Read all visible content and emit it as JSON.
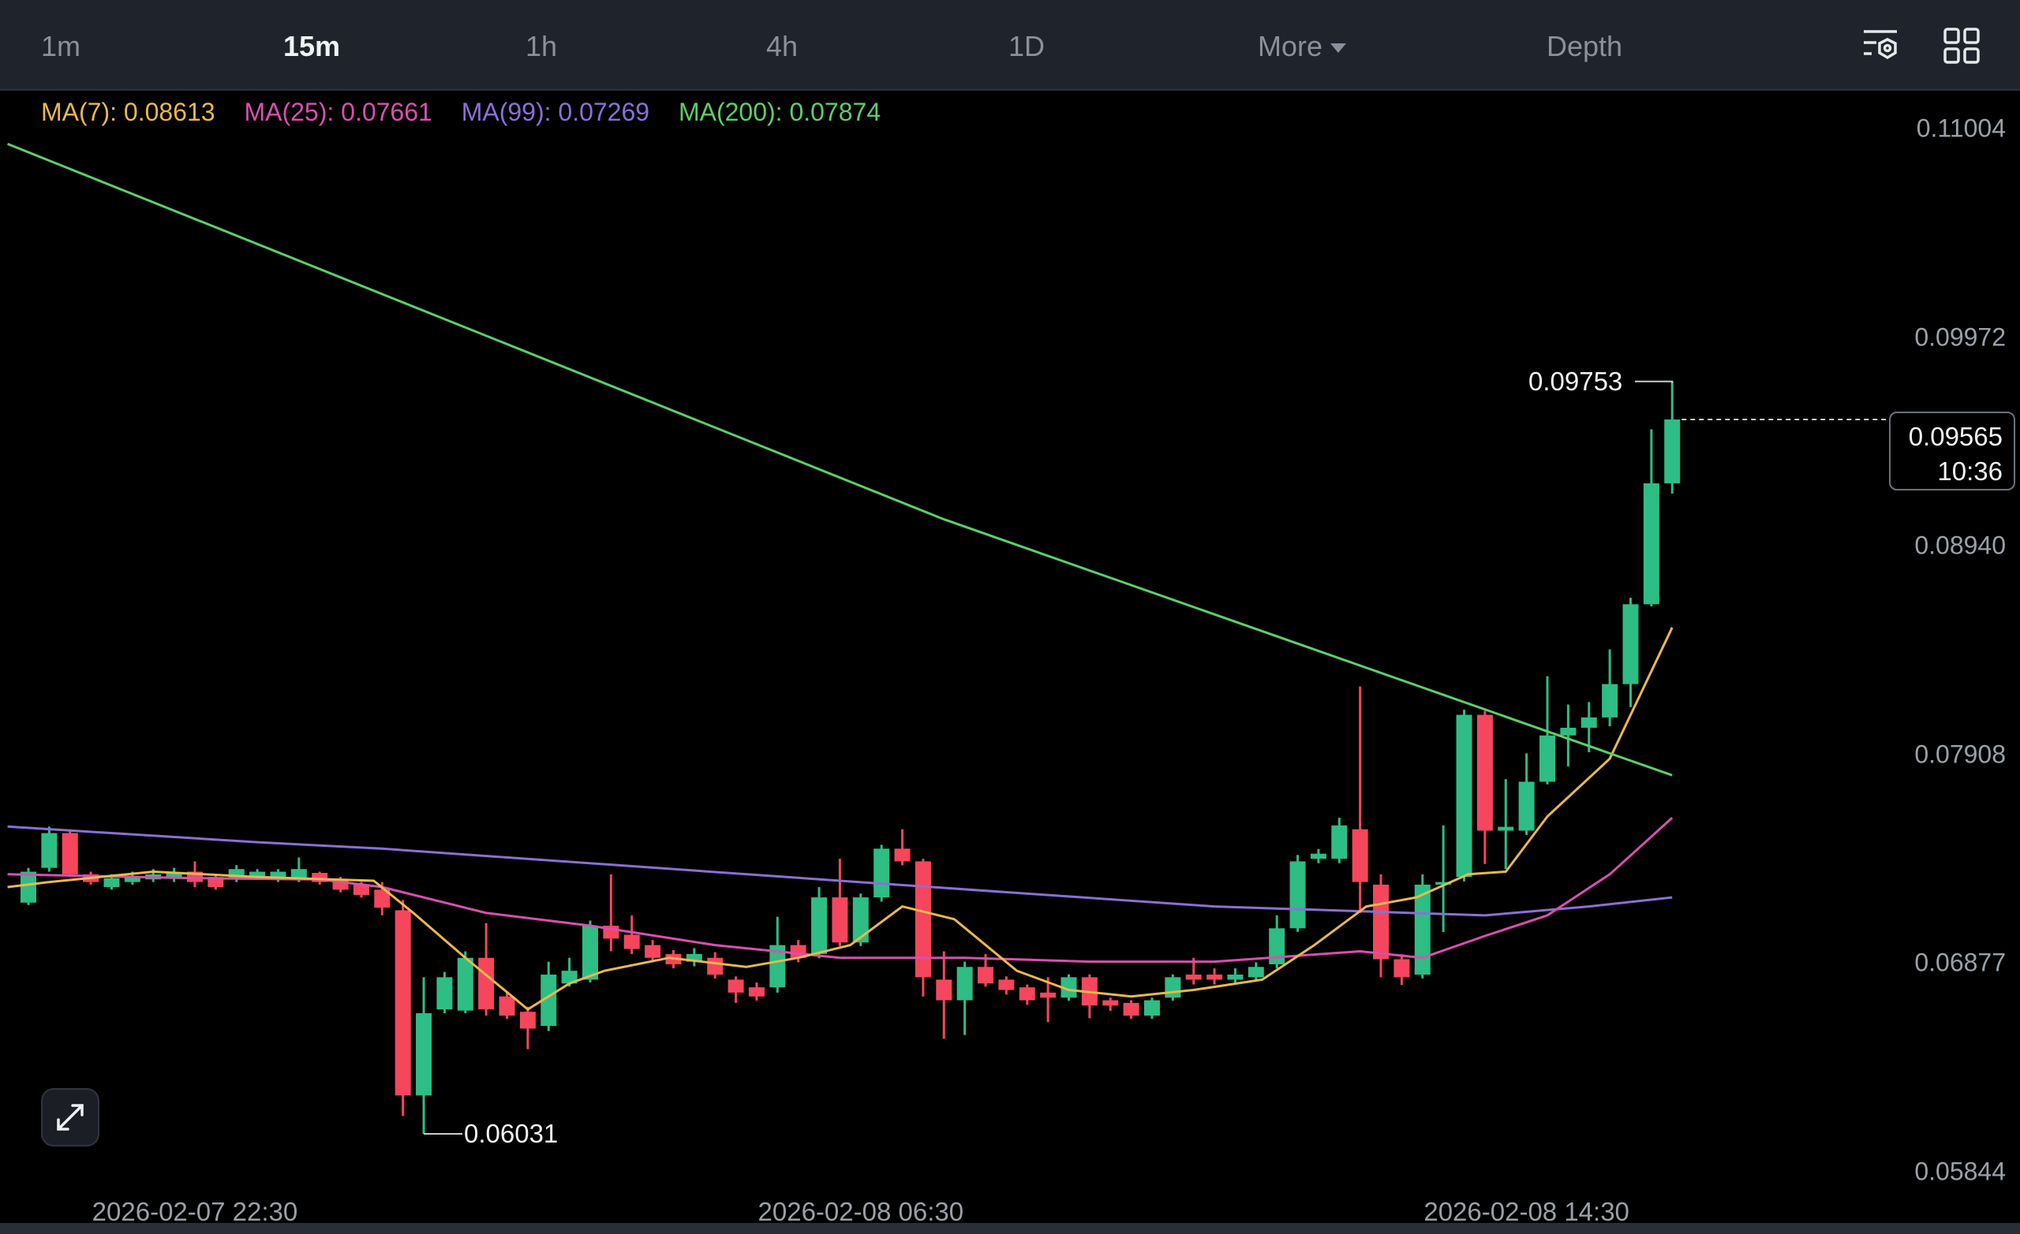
{
  "toolbar": {
    "tabs": [
      {
        "label": "1m"
      },
      {
        "label": "15m",
        "active": true
      },
      {
        "label": "1h"
      },
      {
        "label": "4h"
      },
      {
        "label": "1D"
      },
      {
        "label": "More"
      },
      {
        "label": "Depth"
      }
    ],
    "icons": [
      "chart-settings-icon",
      "grid-layout-icon"
    ]
  },
  "legend": {
    "ma7": "MA(7): 0.08613",
    "ma25": "MA(25): 0.07661",
    "ma99": "MA(99): 0.07269",
    "ma200": "MA(200): 0.07874"
  },
  "colors": {
    "up": "#2ebd85",
    "down": "#f6465d",
    "ma7": "#e9b949",
    "ma25": "#d94fb0",
    "ma99": "#8b6fd6",
    "ma200": "#5ccf6a"
  },
  "current_price": {
    "price": "0.09565",
    "countdown": "10:36"
  },
  "high_marker": "0.09753",
  "low_marker": "0.06031",
  "expand_icon": "expand-arrows-icon",
  "chart_data": {
    "type": "candlestick",
    "interval": "15m",
    "y_ticks": [
      "0.11004",
      "0.09972",
      "0.08940",
      "0.07908",
      "0.06877",
      "0.05844"
    ],
    "x_ticks": [
      {
        "label": "2026-02-07 22:30",
        "candle": 8
      },
      {
        "label": "2026-02-08 06:30",
        "candle": 40
      },
      {
        "label": "2026-02-08 14:30",
        "candle": 72
      }
    ],
    "ohlc_fields": [
      "open",
      "close",
      "high",
      "low"
    ],
    "candles": [
      [
        0.07175,
        0.07328,
        0.07347,
        0.07163
      ],
      [
        0.07347,
        0.07519,
        0.07551,
        0.07328
      ],
      [
        0.07519,
        0.07315,
        0.07538,
        0.07302
      ],
      [
        0.07315,
        0.07277,
        0.07328,
        0.07264
      ],
      [
        0.07252,
        0.07296,
        0.07315,
        0.07239
      ],
      [
        0.07277,
        0.07302,
        0.07328,
        0.07264
      ],
      [
        0.0729,
        0.07315,
        0.07341,
        0.07277
      ],
      [
        0.07296,
        0.07322,
        0.07347,
        0.07277
      ],
      [
        0.07328,
        0.07277,
        0.07379,
        0.07252
      ],
      [
        0.07302,
        0.07252,
        0.07315,
        0.07239
      ],
      [
        0.0729,
        0.07341,
        0.0736,
        0.07277
      ],
      [
        0.07302,
        0.07328,
        0.07341,
        0.0729
      ],
      [
        0.0729,
        0.07328,
        0.07341,
        0.07277
      ],
      [
        0.0729,
        0.07341,
        0.07398,
        0.07277
      ],
      [
        0.07322,
        0.07277,
        0.07328,
        0.07264
      ],
      [
        0.0729,
        0.07239,
        0.07302,
        0.07226
      ],
      [
        0.07264,
        0.07213,
        0.07277,
        0.072
      ],
      [
        0.07239,
        0.0715,
        0.07277,
        0.07112
      ],
      [
        0.07137,
        0.06221,
        0.07188,
        0.0612
      ],
      [
        0.06221,
        0.06628,
        0.06806,
        0.06031
      ],
      [
        0.06647,
        0.06806,
        0.06832,
        0.06628
      ],
      [
        0.06641,
        0.06902,
        0.06934,
        0.06628
      ],
      [
        0.06902,
        0.06647,
        0.07074,
        0.06616
      ],
      [
        0.06711,
        0.06616,
        0.0673,
        0.066
      ],
      [
        0.06635,
        0.06552,
        0.0666,
        0.0645
      ],
      [
        0.06565,
        0.06819,
        0.06883,
        0.0654
      ],
      [
        0.06775,
        0.06838,
        0.06902,
        0.0676
      ],
      [
        0.06794,
        0.07061,
        0.07086,
        0.0678
      ],
      [
        0.07061,
        0.06997,
        0.07315,
        0.06934
      ],
      [
        0.07016,
        0.06946,
        0.07112,
        0.06921
      ],
      [
        0.06965,
        0.06902,
        0.0699,
        0.0688
      ],
      [
        0.06921,
        0.0687,
        0.0694,
        0.0685
      ],
      [
        0.06883,
        0.06921,
        0.0695,
        0.0686
      ],
      [
        0.06902,
        0.06819,
        0.0693,
        0.068
      ],
      [
        0.06794,
        0.0673,
        0.0681,
        0.06679
      ],
      [
        0.06756,
        0.06711,
        0.0678,
        0.0669
      ],
      [
        0.06756,
        0.06965,
        0.07105,
        0.0673
      ],
      [
        0.06965,
        0.06902,
        0.0699,
        0.0688
      ],
      [
        0.06921,
        0.07201,
        0.07252,
        0.069
      ],
      [
        0.07201,
        0.06978,
        0.07392,
        0.0696
      ],
      [
        0.06978,
        0.07201,
        0.0722,
        0.0696
      ],
      [
        0.07201,
        0.07442,
        0.07461,
        0.0718
      ],
      [
        0.07442,
        0.07379,
        0.07538,
        0.0736
      ],
      [
        0.07379,
        0.06806,
        0.07392,
        0.06711
      ],
      [
        0.06794,
        0.06692,
        0.06934,
        0.06501
      ],
      [
        0.06692,
        0.06857,
        0.06883,
        0.0652
      ],
      [
        0.06857,
        0.06775,
        0.06921,
        0.0676
      ],
      [
        0.06794,
        0.06743,
        0.0681,
        0.0672
      ],
      [
        0.06756,
        0.06692,
        0.0677,
        0.0667
      ],
      [
        0.0673,
        0.06705,
        0.06806,
        0.06584
      ],
      [
        0.06705,
        0.06806,
        0.0682,
        0.0669
      ],
      [
        0.06806,
        0.06666,
        0.0682,
        0.06603
      ],
      [
        0.06692,
        0.06666,
        0.06705,
        0.0664
      ],
      [
        0.06679,
        0.06616,
        0.06692,
        0.066
      ],
      [
        0.06616,
        0.06692,
        0.06705,
        0.066
      ],
      [
        0.06705,
        0.06806,
        0.0682,
        0.0669
      ],
      [
        0.06819,
        0.06794,
        0.06902,
        0.0677
      ],
      [
        0.06819,
        0.06794,
        0.0685,
        0.0677
      ],
      [
        0.06794,
        0.06819,
        0.0685,
        0.0677
      ],
      [
        0.06806,
        0.06857,
        0.0688,
        0.0679
      ],
      [
        0.0687,
        0.07048,
        0.07112,
        0.0685
      ],
      [
        0.07048,
        0.07379,
        0.07411,
        0.0703
      ],
      [
        0.07392,
        0.07417,
        0.0744,
        0.0737
      ],
      [
        0.07392,
        0.07557,
        0.07595,
        0.0737
      ],
      [
        0.07538,
        0.07277,
        0.08244,
        0.07124
      ],
      [
        0.07264,
        0.06895,
        0.07315,
        0.06806
      ],
      [
        0.06895,
        0.06806,
        0.0692,
        0.06768
      ],
      [
        0.06819,
        0.07264,
        0.07315,
        0.068
      ],
      [
        0.07264,
        0.07277,
        0.07557,
        0.07029
      ],
      [
        0.07302,
        0.08104,
        0.08129,
        0.0728
      ],
      [
        0.08104,
        0.07531,
        0.08123,
        0.07366
      ],
      [
        0.07531,
        0.0755,
        0.07786,
        0.07341
      ],
      [
        0.07531,
        0.07773,
        0.07913,
        0.0751
      ],
      [
        0.07773,
        0.08002,
        0.08295,
        0.0776
      ],
      [
        0.08002,
        0.0804,
        0.08155,
        0.07849
      ],
      [
        0.0804,
        0.08091,
        0.08167,
        0.07919
      ],
      [
        0.08091,
        0.08256,
        0.08428,
        0.08047
      ],
      [
        0.08256,
        0.08651,
        0.08683,
        0.08142
      ],
      [
        0.08651,
        0.09249,
        0.09516,
        0.0864
      ],
      [
        0.09249,
        0.09565,
        0.09753,
        0.09198
      ]
    ],
    "moving_averages": {
      "ma7": [
        [
          -1,
          0.07252
        ],
        [
          1,
          0.07277
        ],
        [
          6,
          0.07328
        ],
        [
          11,
          0.07302
        ],
        [
          16.6,
          0.07283
        ],
        [
          18.5,
          0.07124
        ],
        [
          21,
          0.06902
        ],
        [
          24,
          0.06647
        ],
        [
          26,
          0.06775
        ],
        [
          27.7,
          0.06838
        ],
        [
          30.8,
          0.06902
        ],
        [
          34.5,
          0.06857
        ],
        [
          37,
          0.06902
        ],
        [
          39.5,
          0.06965
        ],
        [
          42,
          0.07156
        ],
        [
          44.5,
          0.07093
        ],
        [
          47.5,
          0.06838
        ],
        [
          50,
          0.06743
        ],
        [
          53,
          0.06711
        ],
        [
          56,
          0.06743
        ],
        [
          59.3,
          0.06794
        ],
        [
          61.8,
          0.06965
        ],
        [
          64.3,
          0.07156
        ],
        [
          66.7,
          0.07201
        ],
        [
          69.2,
          0.07315
        ],
        [
          71,
          0.07328
        ],
        [
          73,
          0.07601
        ],
        [
          76,
          0.07887
        ],
        [
          79,
          0.08536
        ]
      ],
      "ma25": [
        [
          -1,
          0.07315
        ],
        [
          8,
          0.07296
        ],
        [
          14,
          0.0729
        ],
        [
          17,
          0.07252
        ],
        [
          22,
          0.07124
        ],
        [
          27,
          0.07061
        ],
        [
          33,
          0.06965
        ],
        [
          39,
          0.06902
        ],
        [
          45,
          0.06902
        ],
        [
          51,
          0.06883
        ],
        [
          57,
          0.06883
        ],
        [
          64,
          0.06934
        ],
        [
          67,
          0.06902
        ],
        [
          70,
          0.0701
        ],
        [
          73,
          0.07112
        ],
        [
          76,
          0.07315
        ],
        [
          79,
          0.07595
        ]
      ],
      "ma99": [
        [
          -1,
          0.07551
        ],
        [
          11,
          0.07474
        ],
        [
          17,
          0.07442
        ],
        [
          39,
          0.07283
        ],
        [
          57,
          0.07156
        ],
        [
          70,
          0.07112
        ],
        [
          75,
          0.07156
        ],
        [
          79,
          0.07201
        ]
      ],
      "ma200": [
        [
          -1,
          0.10928
        ],
        [
          44,
          0.09071
        ],
        [
          79,
          0.07805
        ]
      ]
    }
  }
}
